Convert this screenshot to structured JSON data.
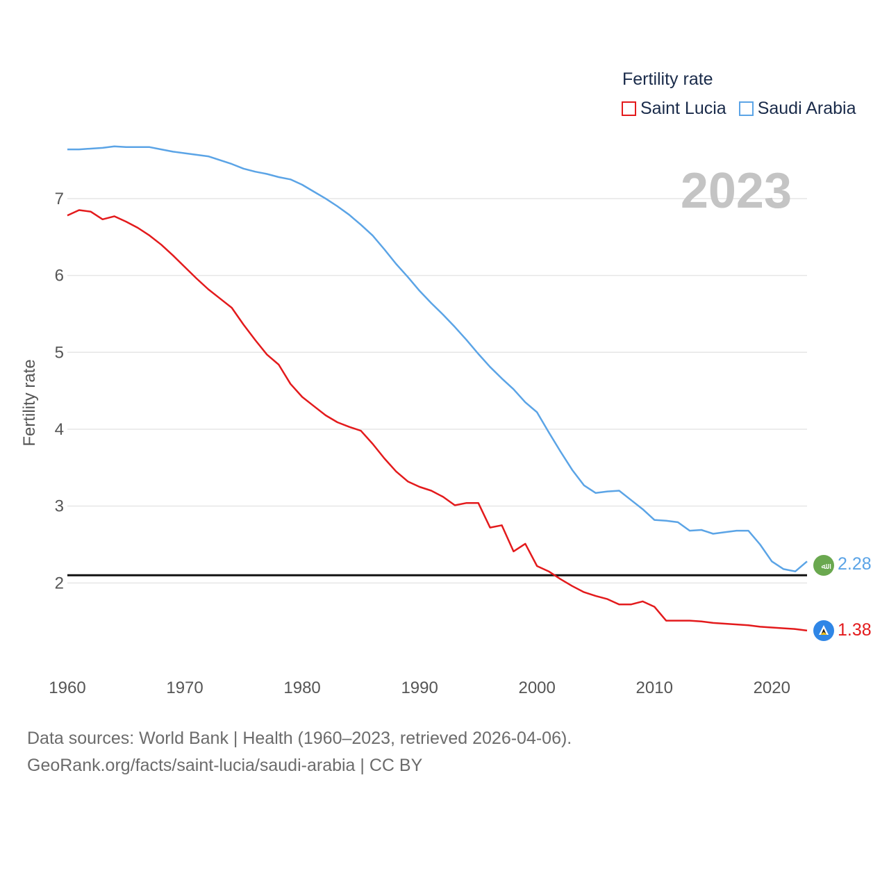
{
  "legend": {
    "title": "Fertility rate",
    "items": [
      {
        "label": "Saint Lucia",
        "color": "#e31a1c"
      },
      {
        "label": "Saudi Arabia",
        "color": "#5ba4e6"
      }
    ]
  },
  "year_display": "2023",
  "sources": {
    "line1": "Data sources: World Bank | Health (1960–2023, retrieved 2026-04-06).",
    "line2": "GeoRank.org/facts/saint-lucia/saudi-arabia | CC BY"
  },
  "chart_data": {
    "type": "line",
    "title": "Fertility rate",
    "xlabel": "",
    "ylabel": "Fertility rate",
    "xlim": [
      1960,
      2023
    ],
    "ylim": [
      1.0,
      7.65
    ],
    "x_ticks": [
      1960,
      1970,
      1980,
      1990,
      2000,
      2010,
      2020
    ],
    "y_ticks": [
      2,
      3,
      4,
      5,
      6,
      7
    ],
    "reference_line": 2.1,
    "grid": true,
    "legend_position": "top-right",
    "x": [
      1960,
      1961,
      1962,
      1963,
      1964,
      1965,
      1966,
      1967,
      1968,
      1969,
      1970,
      1971,
      1972,
      1973,
      1974,
      1975,
      1976,
      1977,
      1978,
      1979,
      1980,
      1981,
      1982,
      1983,
      1984,
      1985,
      1986,
      1987,
      1988,
      1989,
      1990,
      1991,
      1992,
      1993,
      1994,
      1995,
      1996,
      1997,
      1998,
      1999,
      2000,
      2001,
      2002,
      2003,
      2004,
      2005,
      2006,
      2007,
      2008,
      2009,
      2010,
      2011,
      2012,
      2013,
      2014,
      2015,
      2016,
      2017,
      2018,
      2019,
      2020,
      2021,
      2022,
      2023
    ],
    "series": [
      {
        "name": "Saint Lucia",
        "color": "#e31a1c",
        "end_label": "1.38",
        "values": [
          6.78,
          6.85,
          6.83,
          6.73,
          6.77,
          6.7,
          6.62,
          6.52,
          6.4,
          6.26,
          6.11,
          5.96,
          5.82,
          5.7,
          5.58,
          5.36,
          5.16,
          4.97,
          4.84,
          4.59,
          4.42,
          4.3,
          4.18,
          4.09,
          4.03,
          3.98,
          3.81,
          3.62,
          3.45,
          3.32,
          3.25,
          3.2,
          3.12,
          3.01,
          3.04,
          3.04,
          2.72,
          2.75,
          2.41,
          2.51,
          2.22,
          2.15,
          2.05,
          1.96,
          1.88,
          1.83,
          1.79,
          1.72,
          1.72,
          1.76,
          1.69,
          1.51,
          1.51,
          1.51,
          1.5,
          1.48,
          1.47,
          1.46,
          1.45,
          1.43,
          1.42,
          1.41,
          1.4,
          1.38
        ]
      },
      {
        "name": "Saudi Arabia",
        "color": "#5ba4e6",
        "end_label": "2.28",
        "values": [
          7.64,
          7.64,
          7.65,
          7.66,
          7.68,
          7.67,
          7.67,
          7.67,
          7.64,
          7.61,
          7.59,
          7.57,
          7.55,
          7.5,
          7.45,
          7.39,
          7.35,
          7.32,
          7.28,
          7.25,
          7.18,
          7.09,
          7.0,
          6.9,
          6.79,
          6.66,
          6.52,
          6.34,
          6.15,
          5.98,
          5.8,
          5.64,
          5.49,
          5.33,
          5.16,
          4.98,
          4.81,
          4.66,
          4.52,
          4.35,
          4.22,
          3.96,
          3.71,
          3.47,
          3.27,
          3.17,
          3.19,
          3.2,
          3.08,
          2.96,
          2.82,
          2.81,
          2.79,
          2.68,
          2.69,
          2.64,
          2.66,
          2.68,
          2.68,
          2.5,
          2.28,
          2.18,
          2.15,
          2.28
        ]
      }
    ]
  }
}
